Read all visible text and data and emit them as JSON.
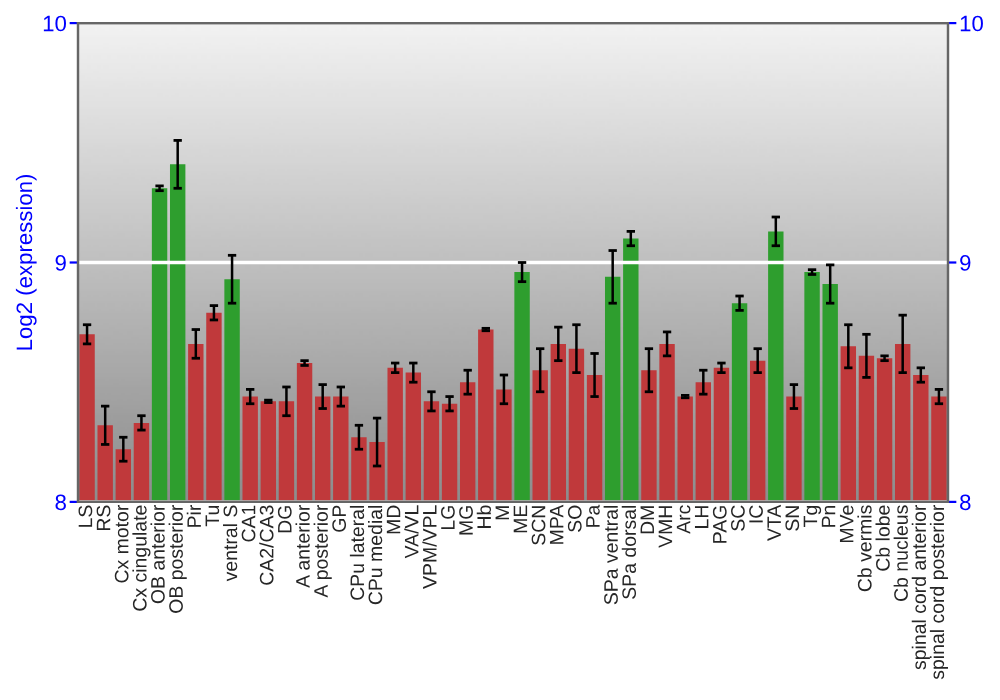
{
  "chart_data": {
    "type": "bar",
    "ylabel": "Log2 (expression)",
    "categories": [
      "LS",
      "RS",
      "Cx motor",
      "Cx cingulate",
      "OB anterior",
      "OB posterior",
      "Pir",
      "Tu",
      "ventral S",
      "CA1",
      "CA2/CA3",
      "DG",
      "A anterior",
      "A posterior",
      "GP",
      "CPu lateral",
      "CPu medial",
      "MD",
      "VA/VL",
      "VPM/VPL",
      "LG",
      "MG",
      "Hb",
      "M",
      "ME",
      "SCN",
      "MPA",
      "SO",
      "Pa",
      "SPa ventral",
      "SPa dorsal",
      "DM",
      "VMH",
      "Arc",
      "LH",
      "PAG",
      "SC",
      "IC",
      "VTA",
      "SN",
      "Tg",
      "Pn",
      "MVe",
      "Cb vermis",
      "Cb lobe",
      "Cb nucleus",
      "spinal cord anterior",
      "spinal cord posterior"
    ],
    "values": [
      8.7,
      8.32,
      8.22,
      8.33,
      9.31,
      9.41,
      8.66,
      8.79,
      8.93,
      8.44,
      8.42,
      8.42,
      8.58,
      8.44,
      8.44,
      8.27,
      8.25,
      8.56,
      8.54,
      8.42,
      8.41,
      8.5,
      8.72,
      8.47,
      8.96,
      8.55,
      8.66,
      8.64,
      8.53,
      8.94,
      9.1,
      8.55,
      8.66,
      8.44,
      8.5,
      8.56,
      8.83,
      8.59,
      9.13,
      8.44,
      8.96,
      8.91,
      8.65,
      8.61,
      8.6,
      8.66,
      8.53,
      8.44
    ],
    "errors": [
      0.04,
      0.08,
      0.05,
      0.03,
      0.01,
      0.1,
      0.06,
      0.03,
      0.1,
      0.03,
      0.005,
      0.06,
      0.01,
      0.05,
      0.04,
      0.05,
      0.1,
      0.02,
      0.04,
      0.04,
      0.03,
      0.05,
      0.005,
      0.06,
      0.04,
      0.09,
      0.07,
      0.1,
      0.09,
      0.11,
      0.03,
      0.09,
      0.05,
      0.005,
      0.05,
      0.02,
      0.03,
      0.05,
      0.06,
      0.05,
      0.01,
      0.08,
      0.09,
      0.09,
      0.01,
      0.12,
      0.03,
      0.03
    ],
    "colors": [
      "#c0393b",
      "#c0393b",
      "#c0393b",
      "#c0393b",
      "#2e9e2e",
      "#2e9e2e",
      "#c0393b",
      "#c0393b",
      "#2e9e2e",
      "#c0393b",
      "#c0393b",
      "#c0393b",
      "#c0393b",
      "#c0393b",
      "#c0393b",
      "#c0393b",
      "#c0393b",
      "#c0393b",
      "#c0393b",
      "#c0393b",
      "#c0393b",
      "#c0393b",
      "#c0393b",
      "#c0393b",
      "#2e9e2e",
      "#c0393b",
      "#c0393b",
      "#c0393b",
      "#c0393b",
      "#2e9e2e",
      "#2e9e2e",
      "#c0393b",
      "#c0393b",
      "#c0393b",
      "#c0393b",
      "#c0393b",
      "#2e9e2e",
      "#c0393b",
      "#2e9e2e",
      "#c0393b",
      "#2e9e2e",
      "#2e9e2e",
      "#c0393b",
      "#c0393b",
      "#c0393b",
      "#c0393b",
      "#c0393b",
      "#c0393b"
    ],
    "ylim": [
      8,
      10
    ],
    "yticks": [
      8,
      9,
      10
    ],
    "y2lim": [
      8,
      10
    ],
    "y2ticks": [
      8,
      9,
      10
    ],
    "grid": "y"
  }
}
